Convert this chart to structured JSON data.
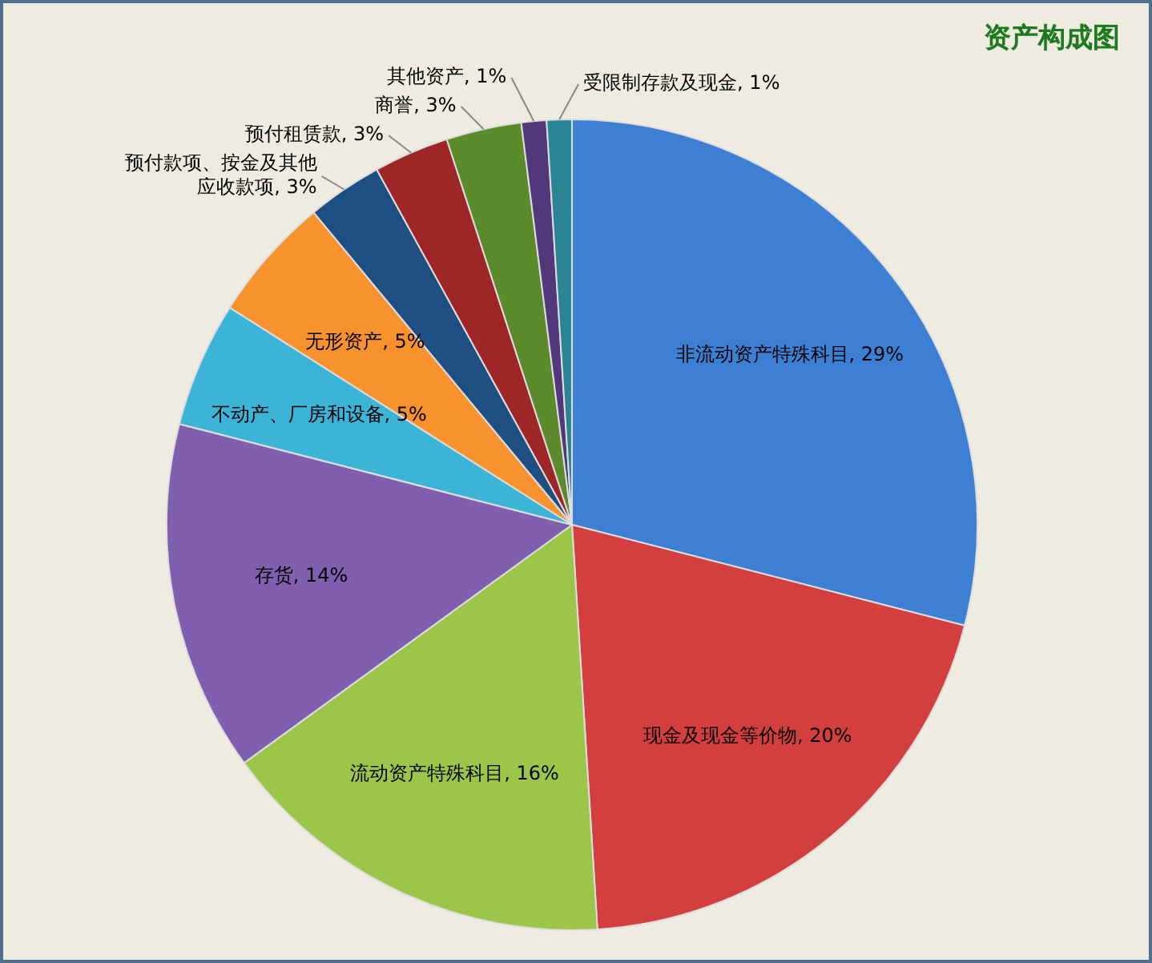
{
  "chart_data": {
    "type": "pie",
    "title": "资产构成图",
    "categories": [
      "非流动资产特殊科目",
      "现金及现金等价物",
      "流动资产特殊科目",
      "存货",
      "不动产、厂房和设备",
      "无形资产",
      "预付款项、按金及其他应收款项",
      "预付租赁款",
      "商誉",
      "其他资产",
      "受限制存款及现金"
    ],
    "values": [
      29,
      20,
      16,
      14,
      5,
      5,
      3,
      3,
      3,
      1,
      1
    ],
    "value_labels": [
      "29%",
      "20%",
      "16%",
      "14%",
      "5%",
      "5%",
      "3%",
      "3%",
      "3%",
      "1%",
      "1%"
    ],
    "colors": [
      "#3d7fd2",
      "#d33f3f",
      "#9cc64a",
      "#7f5fae",
      "#3cb4d8",
      "#f7922f",
      "#1f4e82",
      "#9e2626",
      "#5b8b2a",
      "#52387a",
      "#2a8494"
    ],
    "legend": false
  }
}
